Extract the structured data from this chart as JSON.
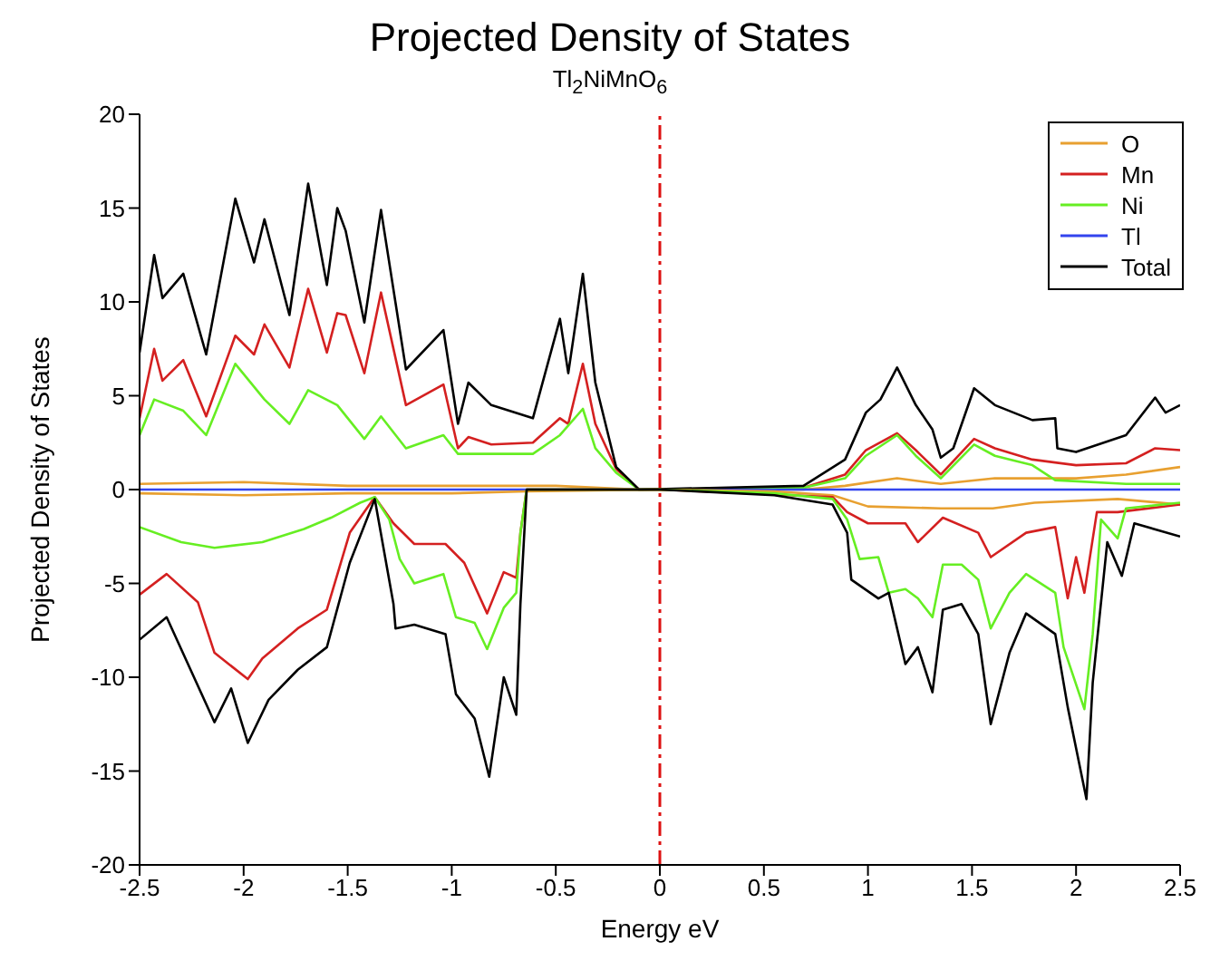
{
  "chart_data": {
    "type": "line",
    "title": "Projected Density of States",
    "subtitle": "Tl$_{2}$NiMnO$_{6}$",
    "xlabel": "Energy eV",
    "ylabel": "Projected Density of States",
    "xlim": [
      -2.5,
      2.5
    ],
    "ylim": [
      -20,
      20
    ],
    "xticks": [
      -2.5,
      -2,
      -1.5,
      -1,
      -0.5,
      0,
      0.5,
      1,
      1.5,
      2,
      2.5
    ],
    "yticks": [
      -20,
      -15,
      -10,
      -5,
      0,
      5,
      10,
      15,
      20
    ],
    "grid": false,
    "legend": "top right",
    "marker": "none",
    "line_style": "solid",
    "ref_lines": [
      {
        "axis": "x",
        "value": 0,
        "color": "#dd1111",
        "line_style": "dashed"
      }
    ],
    "series": [
      {
        "name": "O",
        "color": "#e8a030",
        "x": [
          -2.5,
          -2.0,
          -1.5,
          -1.0,
          -0.5,
          -0.1,
          0.69,
          0.89,
          1.14,
          1.35,
          1.61,
          2.0,
          2.24,
          2.5
        ],
        "values": [
          0.3,
          0.4,
          0.2,
          0.2,
          0.2,
          0,
          0,
          0.2,
          0.6,
          0.3,
          0.6,
          0.6,
          0.8,
          1.2
        ]
      },
      {
        "name": "Mn",
        "color": "#d42020",
        "x": [
          -2.5,
          -2.43,
          -2.39,
          -2.29,
          -2.18,
          -2.04,
          -1.95,
          -1.9,
          -1.78,
          -1.69,
          -1.6,
          -1.55,
          -1.51,
          -1.42,
          -1.34,
          -1.22,
          -1.04,
          -0.97,
          -0.92,
          -0.81,
          -0.61,
          -0.48,
          -0.44,
          -0.37,
          -0.31,
          -0.21,
          -0.1,
          0.69,
          0.89,
          0.99,
          1.14,
          1.23,
          1.35,
          1.51,
          1.61,
          1.79,
          2.0,
          2.24,
          2.38,
          2.5
        ],
        "values": [
          3.8,
          7.5,
          5.8,
          6.9,
          3.9,
          8.2,
          7.2,
          8.8,
          6.5,
          10.7,
          7.3,
          9.4,
          9.3,
          6.2,
          10.5,
          4.5,
          5.6,
          2.2,
          2.8,
          2.4,
          2.5,
          3.8,
          3.5,
          6.7,
          3.5,
          1.1,
          0,
          0.1,
          0.8,
          2.1,
          3.0,
          2.1,
          0.8,
          2.7,
          2.2,
          1.6,
          1.3,
          1.4,
          2.2,
          2.1
        ]
      },
      {
        "name": "Ni",
        "color": "#66ee22",
        "x": [
          -2.5,
          -2.43,
          -2.29,
          -2.18,
          -2.04,
          -1.9,
          -1.78,
          -1.69,
          -1.55,
          -1.42,
          -1.34,
          -1.22,
          -1.04,
          -0.97,
          -0.81,
          -0.61,
          -0.48,
          -0.37,
          -0.31,
          -0.21,
          -0.1,
          0.69,
          0.89,
          0.99,
          1.14,
          1.23,
          1.35,
          1.51,
          1.61,
          1.79,
          1.9,
          2.24,
          2.5
        ],
        "values": [
          2.9,
          4.8,
          4.2,
          2.9,
          6.7,
          4.8,
          3.5,
          5.3,
          4.5,
          2.7,
          3.9,
          2.2,
          2.9,
          1.9,
          1.9,
          1.9,
          2.9,
          4.3,
          2.2,
          0.9,
          0,
          0.1,
          0.6,
          1.8,
          2.9,
          1.8,
          0.6,
          2.4,
          1.8,
          1.3,
          0.5,
          0.3,
          0.3
        ]
      },
      {
        "name": "Tl",
        "color": "#3344ee",
        "x": [
          -2.5,
          2.5
        ],
        "values": [
          0,
          0
        ]
      },
      {
        "name": "Total",
        "color": "#000000",
        "x": [
          -2.5,
          -2.43,
          -2.39,
          -2.29,
          -2.18,
          -2.04,
          -1.95,
          -1.9,
          -1.78,
          -1.69,
          -1.6,
          -1.55,
          -1.51,
          -1.42,
          -1.34,
          -1.22,
          -1.04,
          -0.97,
          -0.92,
          -0.81,
          -0.61,
          -0.48,
          -0.44,
          -0.37,
          -0.31,
          -0.21,
          -0.1,
          0.69,
          0.89,
          0.99,
          1.06,
          1.14,
          1.23,
          1.31,
          1.35,
          1.41,
          1.51,
          1.61,
          1.79,
          1.9,
          1.91,
          2.0,
          2.24,
          2.38,
          2.43,
          2.5
        ],
        "values": [
          7.3,
          12.5,
          10.2,
          11.5,
          7.2,
          15.5,
          12.1,
          14.4,
          9.3,
          16.3,
          10.9,
          15.0,
          13.8,
          8.9,
          14.9,
          6.4,
          8.5,
          3.5,
          5.7,
          4.5,
          3.8,
          9.1,
          6.2,
          11.5,
          5.7,
          1.2,
          0,
          0.2,
          1.6,
          4.1,
          4.8,
          6.5,
          4.5,
          3.2,
          1.7,
          2.2,
          5.4,
          4.5,
          3.7,
          3.8,
          2.2,
          2.0,
          2.9,
          4.9,
          4.1,
          4.5
        ]
      },
      {
        "color": "#e8a030",
        "x": [
          -2.5,
          -2.0,
          -1.5,
          -1.0,
          -0.64,
          0,
          0.55,
          0.83,
          1.0,
          1.35,
          1.6,
          1.8,
          2.2,
          2.5
        ],
        "values": [
          -0.2,
          -0.3,
          -0.2,
          -0.2,
          -0.1,
          0,
          -0.1,
          -0.3,
          -0.9,
          -1.0,
          -1.0,
          -0.7,
          -0.5,
          -0.8
        ]
      },
      {
        "color": "#d42020",
        "x": [
          -2.5,
          -2.37,
          -2.22,
          -2.14,
          -1.98,
          -1.91,
          -1.74,
          -1.6,
          -1.49,
          -1.37,
          -1.28,
          -1.18,
          -1.03,
          -0.94,
          -0.83,
          -0.75,
          -0.69,
          -0.67,
          -0.64,
          0,
          0.83,
          0.9,
          1.0,
          1.18,
          1.24,
          1.36,
          1.53,
          1.59,
          1.76,
          1.9,
          1.96,
          2.0,
          2.04,
          2.1,
          2.2,
          2.5
        ],
        "values": [
          -5.6,
          -4.5,
          -6.0,
          -8.7,
          -10.1,
          -9.0,
          -7.4,
          -6.4,
          -2.3,
          -0.4,
          -1.8,
          -2.9,
          -2.9,
          -3.9,
          -6.6,
          -4.4,
          -4.7,
          -2.3,
          0,
          0,
          -0.4,
          -1.2,
          -1.8,
          -1.8,
          -2.8,
          -1.5,
          -2.3,
          -3.6,
          -2.3,
          -2.0,
          -5.8,
          -3.6,
          -5.5,
          -1.2,
          -1.2,
          -0.8
        ]
      },
      {
        "color": "#66ee22",
        "x": [
          -2.5,
          -2.3,
          -2.14,
          -1.91,
          -1.71,
          -1.58,
          -1.44,
          -1.37,
          -1.3,
          -1.25,
          -1.18,
          -1.04,
          -0.98,
          -0.89,
          -0.83,
          -0.75,
          -0.69,
          -0.67,
          -0.64,
          0,
          0.55,
          0.83,
          0.9,
          0.96,
          1.05,
          1.1,
          1.18,
          1.24,
          1.31,
          1.36,
          1.45,
          1.53,
          1.59,
          1.68,
          1.76,
          1.9,
          1.94,
          2.04,
          2.08,
          2.12,
          2.2,
          2.24,
          2.5
        ],
        "values": [
          -2.0,
          -2.8,
          -3.1,
          -2.8,
          -2.1,
          -1.5,
          -0.7,
          -0.4,
          -1.6,
          -3.7,
          -5.0,
          -4.5,
          -6.8,
          -7.1,
          -8.5,
          -6.3,
          -5.5,
          -2.3,
          0,
          0,
          -0.2,
          -0.5,
          -1.6,
          -3.7,
          -3.6,
          -5.5,
          -5.3,
          -5.8,
          -6.8,
          -4.0,
          -4.0,
          -4.8,
          -7.4,
          -5.5,
          -4.5,
          -5.5,
          -8.4,
          -11.7,
          -7.7,
          -1.6,
          -2.6,
          -1.0,
          -0.7
        ]
      },
      {
        "color": "#000000",
        "x": [
          -2.5,
          -2.37,
          -2.14,
          -2.06,
          -1.98,
          -1.88,
          -1.74,
          -1.6,
          -1.49,
          -1.37,
          -1.28,
          -1.27,
          -1.18,
          -1.03,
          -0.98,
          -0.89,
          -0.82,
          -0.75,
          -0.69,
          -0.67,
          -0.64,
          0,
          0.55,
          0.83,
          0.9,
          0.92,
          1.05,
          1.1,
          1.18,
          1.24,
          1.31,
          1.36,
          1.45,
          1.53,
          1.59,
          1.68,
          1.76,
          1.9,
          1.96,
          2.05,
          2.08,
          2.15,
          2.22,
          2.28,
          2.5
        ],
        "values": [
          -8.0,
          -6.8,
          -12.4,
          -10.6,
          -13.5,
          -11.2,
          -9.6,
          -8.4,
          -3.9,
          -0.5,
          -6.1,
          -7.4,
          -7.2,
          -7.7,
          -10.9,
          -12.2,
          -15.3,
          -10.0,
          -12.0,
          -6.1,
          0,
          0,
          -0.3,
          -0.8,
          -2.3,
          -4.8,
          -5.8,
          -5.5,
          -9.3,
          -8.4,
          -10.8,
          -6.4,
          -6.1,
          -7.7,
          -12.5,
          -8.7,
          -6.6,
          -7.7,
          -11.6,
          -16.5,
          -10.3,
          -2.8,
          -4.6,
          -1.8,
          -2.5
        ]
      }
    ]
  }
}
